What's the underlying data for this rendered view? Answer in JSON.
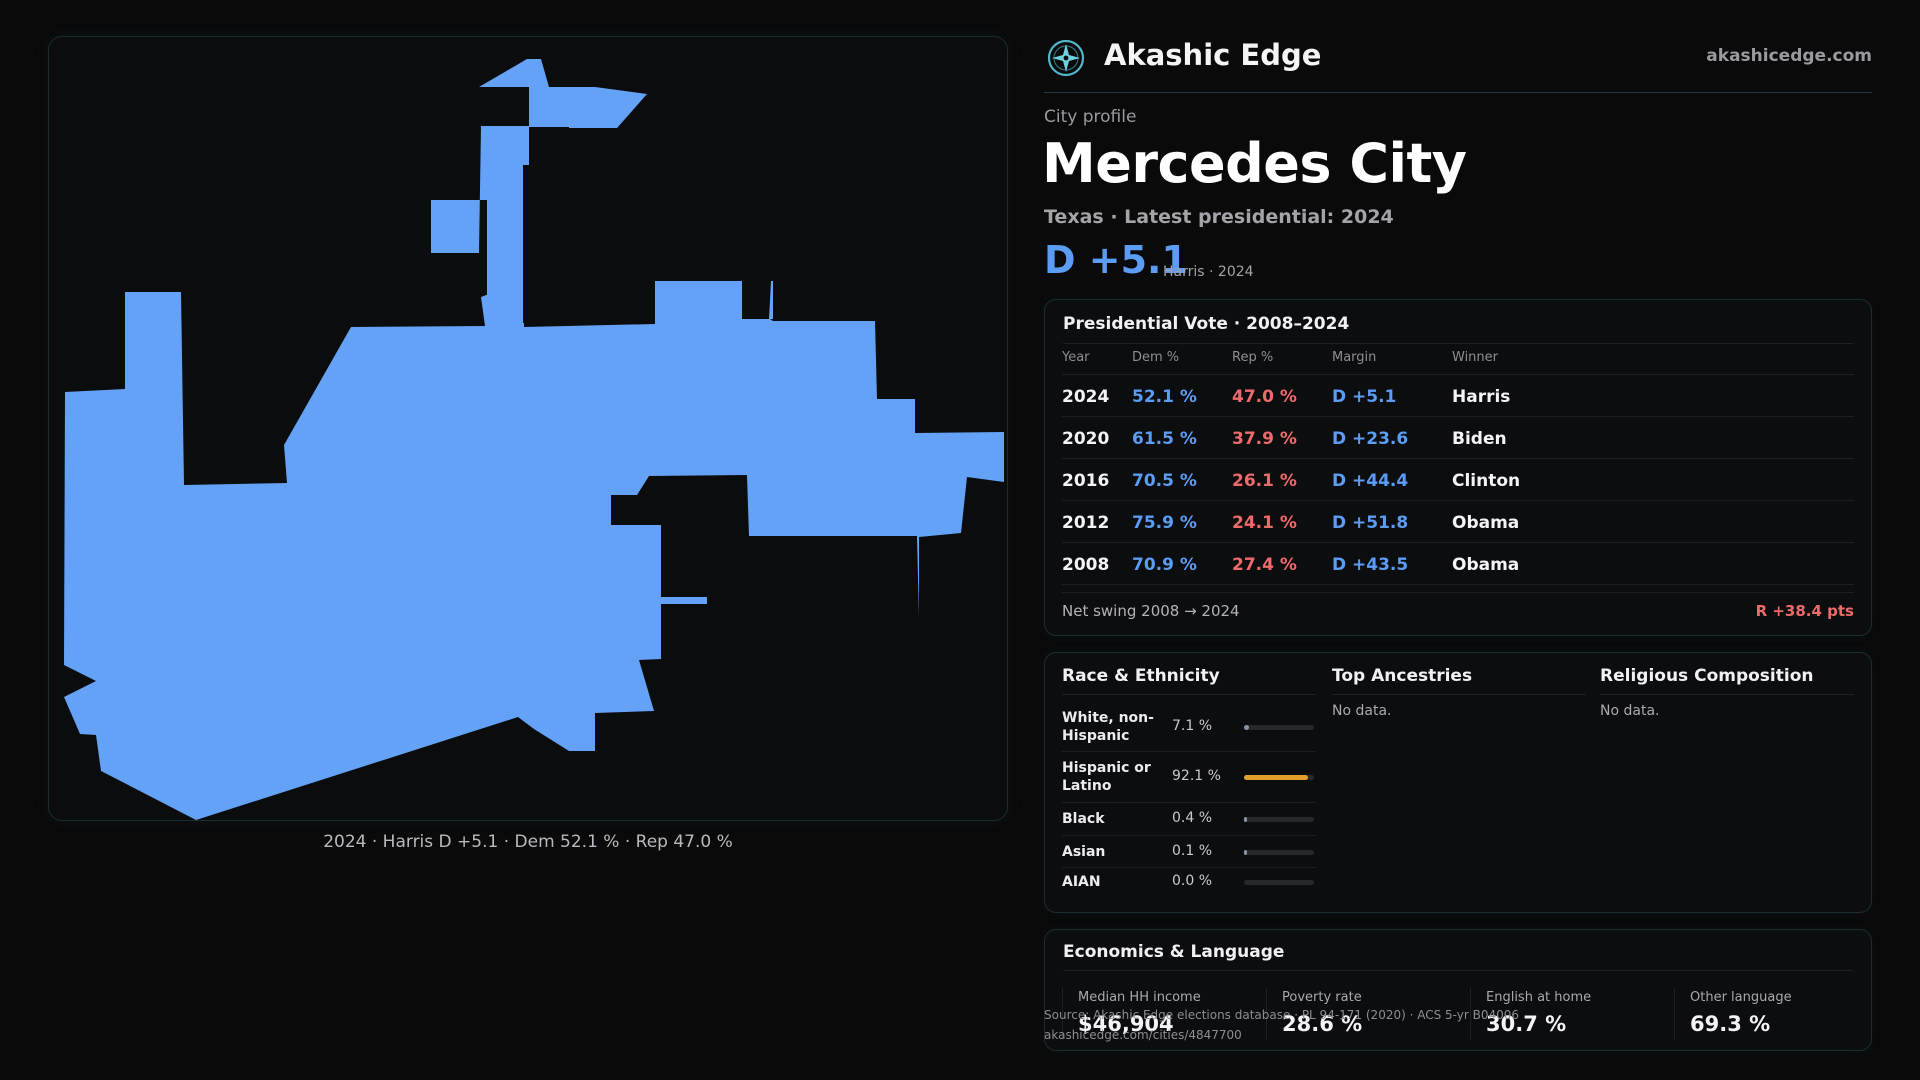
{
  "brand": {
    "name": "Akashic Edge",
    "url": "akashicedge.com",
    "logo": "compass-rose-icon"
  },
  "profile": {
    "eyebrow": "City profile",
    "city": "Mercedes City",
    "subtitle": "Texas · Latest presidential: 2024",
    "margin": "D +5.1",
    "margin_note": "Harris · 2024"
  },
  "map": {
    "caption": "2024 · Harris D +5.1 · Dem 52.1 % · Rep 47.0 %",
    "fill_color": "#64a2f7",
    "background": "#0b0c0d"
  },
  "vote": {
    "title": "Presidential Vote · 2008–2024",
    "headers": [
      "Year",
      "Dem %",
      "Rep %",
      "Margin",
      "Winner"
    ],
    "rows": [
      {
        "year": "2024",
        "dem": "52.1 %",
        "rep": "47.0 %",
        "margin": "D +5.1",
        "winner": "Harris"
      },
      {
        "year": "2020",
        "dem": "61.5 %",
        "rep": "37.9 %",
        "margin": "D +23.6",
        "winner": "Biden"
      },
      {
        "year": "2016",
        "dem": "70.5 %",
        "rep": "26.1 %",
        "margin": "D +44.4",
        "winner": "Clinton"
      },
      {
        "year": "2012",
        "dem": "75.9 %",
        "rep": "24.1 %",
        "margin": "D +51.8",
        "winner": "Obama"
      },
      {
        "year": "2008",
        "dem": "70.9 %",
        "rep": "27.4 %",
        "margin": "D +43.5",
        "winner": "Obama"
      }
    ],
    "swing_label": "Net swing 2008 → 2024",
    "swing_value": "R +38.4 pts"
  },
  "demographics": {
    "race_title": "Race & Ethnicity",
    "race": [
      {
        "label": "White, non-Hispanic",
        "pct": "7.1 %",
        "value": 7.1,
        "color": "#8a93a8"
      },
      {
        "label": "Hispanic or Latino",
        "pct": "92.1 %",
        "value": 92.1,
        "color": "#e0a12a"
      },
      {
        "label": "Black",
        "pct": "0.4 %",
        "value": 0.4,
        "color": "#8a93a8"
      },
      {
        "label": "Asian",
        "pct": "0.1 %",
        "value": 0.1,
        "color": "#8a93a8"
      },
      {
        "label": "AIAN",
        "pct": "0.0 %",
        "value": 0.0,
        "color": "#8a93a8"
      }
    ],
    "ancestry_title": "Top Ancestries",
    "ancestry_empty": "No data.",
    "religion_title": "Religious Composition",
    "religion_empty": "No data."
  },
  "economics": {
    "title": "Economics & Language",
    "stats": [
      {
        "label": "Median HH income",
        "value": "$46,904"
      },
      {
        "label": "Poverty rate",
        "value": "28.6 %"
      },
      {
        "label": "English at home",
        "value": "30.7 %"
      },
      {
        "label": "Other language",
        "value": "69.3 %"
      }
    ]
  },
  "source": {
    "line1": "Source: Akashic Edge elections database · PL 94-171 (2020) · ACS 5-yr B04006",
    "line2": "akashicedge.com/cities/4847700"
  }
}
